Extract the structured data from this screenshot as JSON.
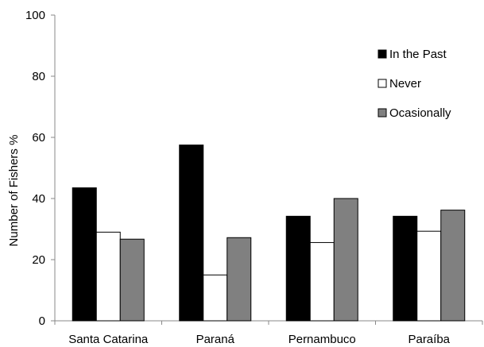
{
  "chart_data": {
    "type": "bar",
    "title": "",
    "xlabel": "",
    "ylabel": "Number of Fishers %",
    "ylim": [
      0,
      100
    ],
    "yticks": [
      0,
      20,
      40,
      60,
      80,
      100
    ],
    "grid": false,
    "legend_position": "top-right",
    "categories": [
      "Santa Catarina",
      "Paraná",
      "Pernambuco",
      "Paraíba"
    ],
    "series": [
      {
        "name": "In the Past",
        "color": "#000000",
        "values": [
          43.5,
          57.5,
          34.2,
          34.2
        ]
      },
      {
        "name": "Never",
        "color": "#ffffff",
        "values": [
          29,
          15,
          25.6,
          29.3
        ]
      },
      {
        "name": "Ocasionally",
        "color": "#808080",
        "values": [
          26.7,
          27.2,
          40,
          36.2
        ]
      }
    ]
  }
}
